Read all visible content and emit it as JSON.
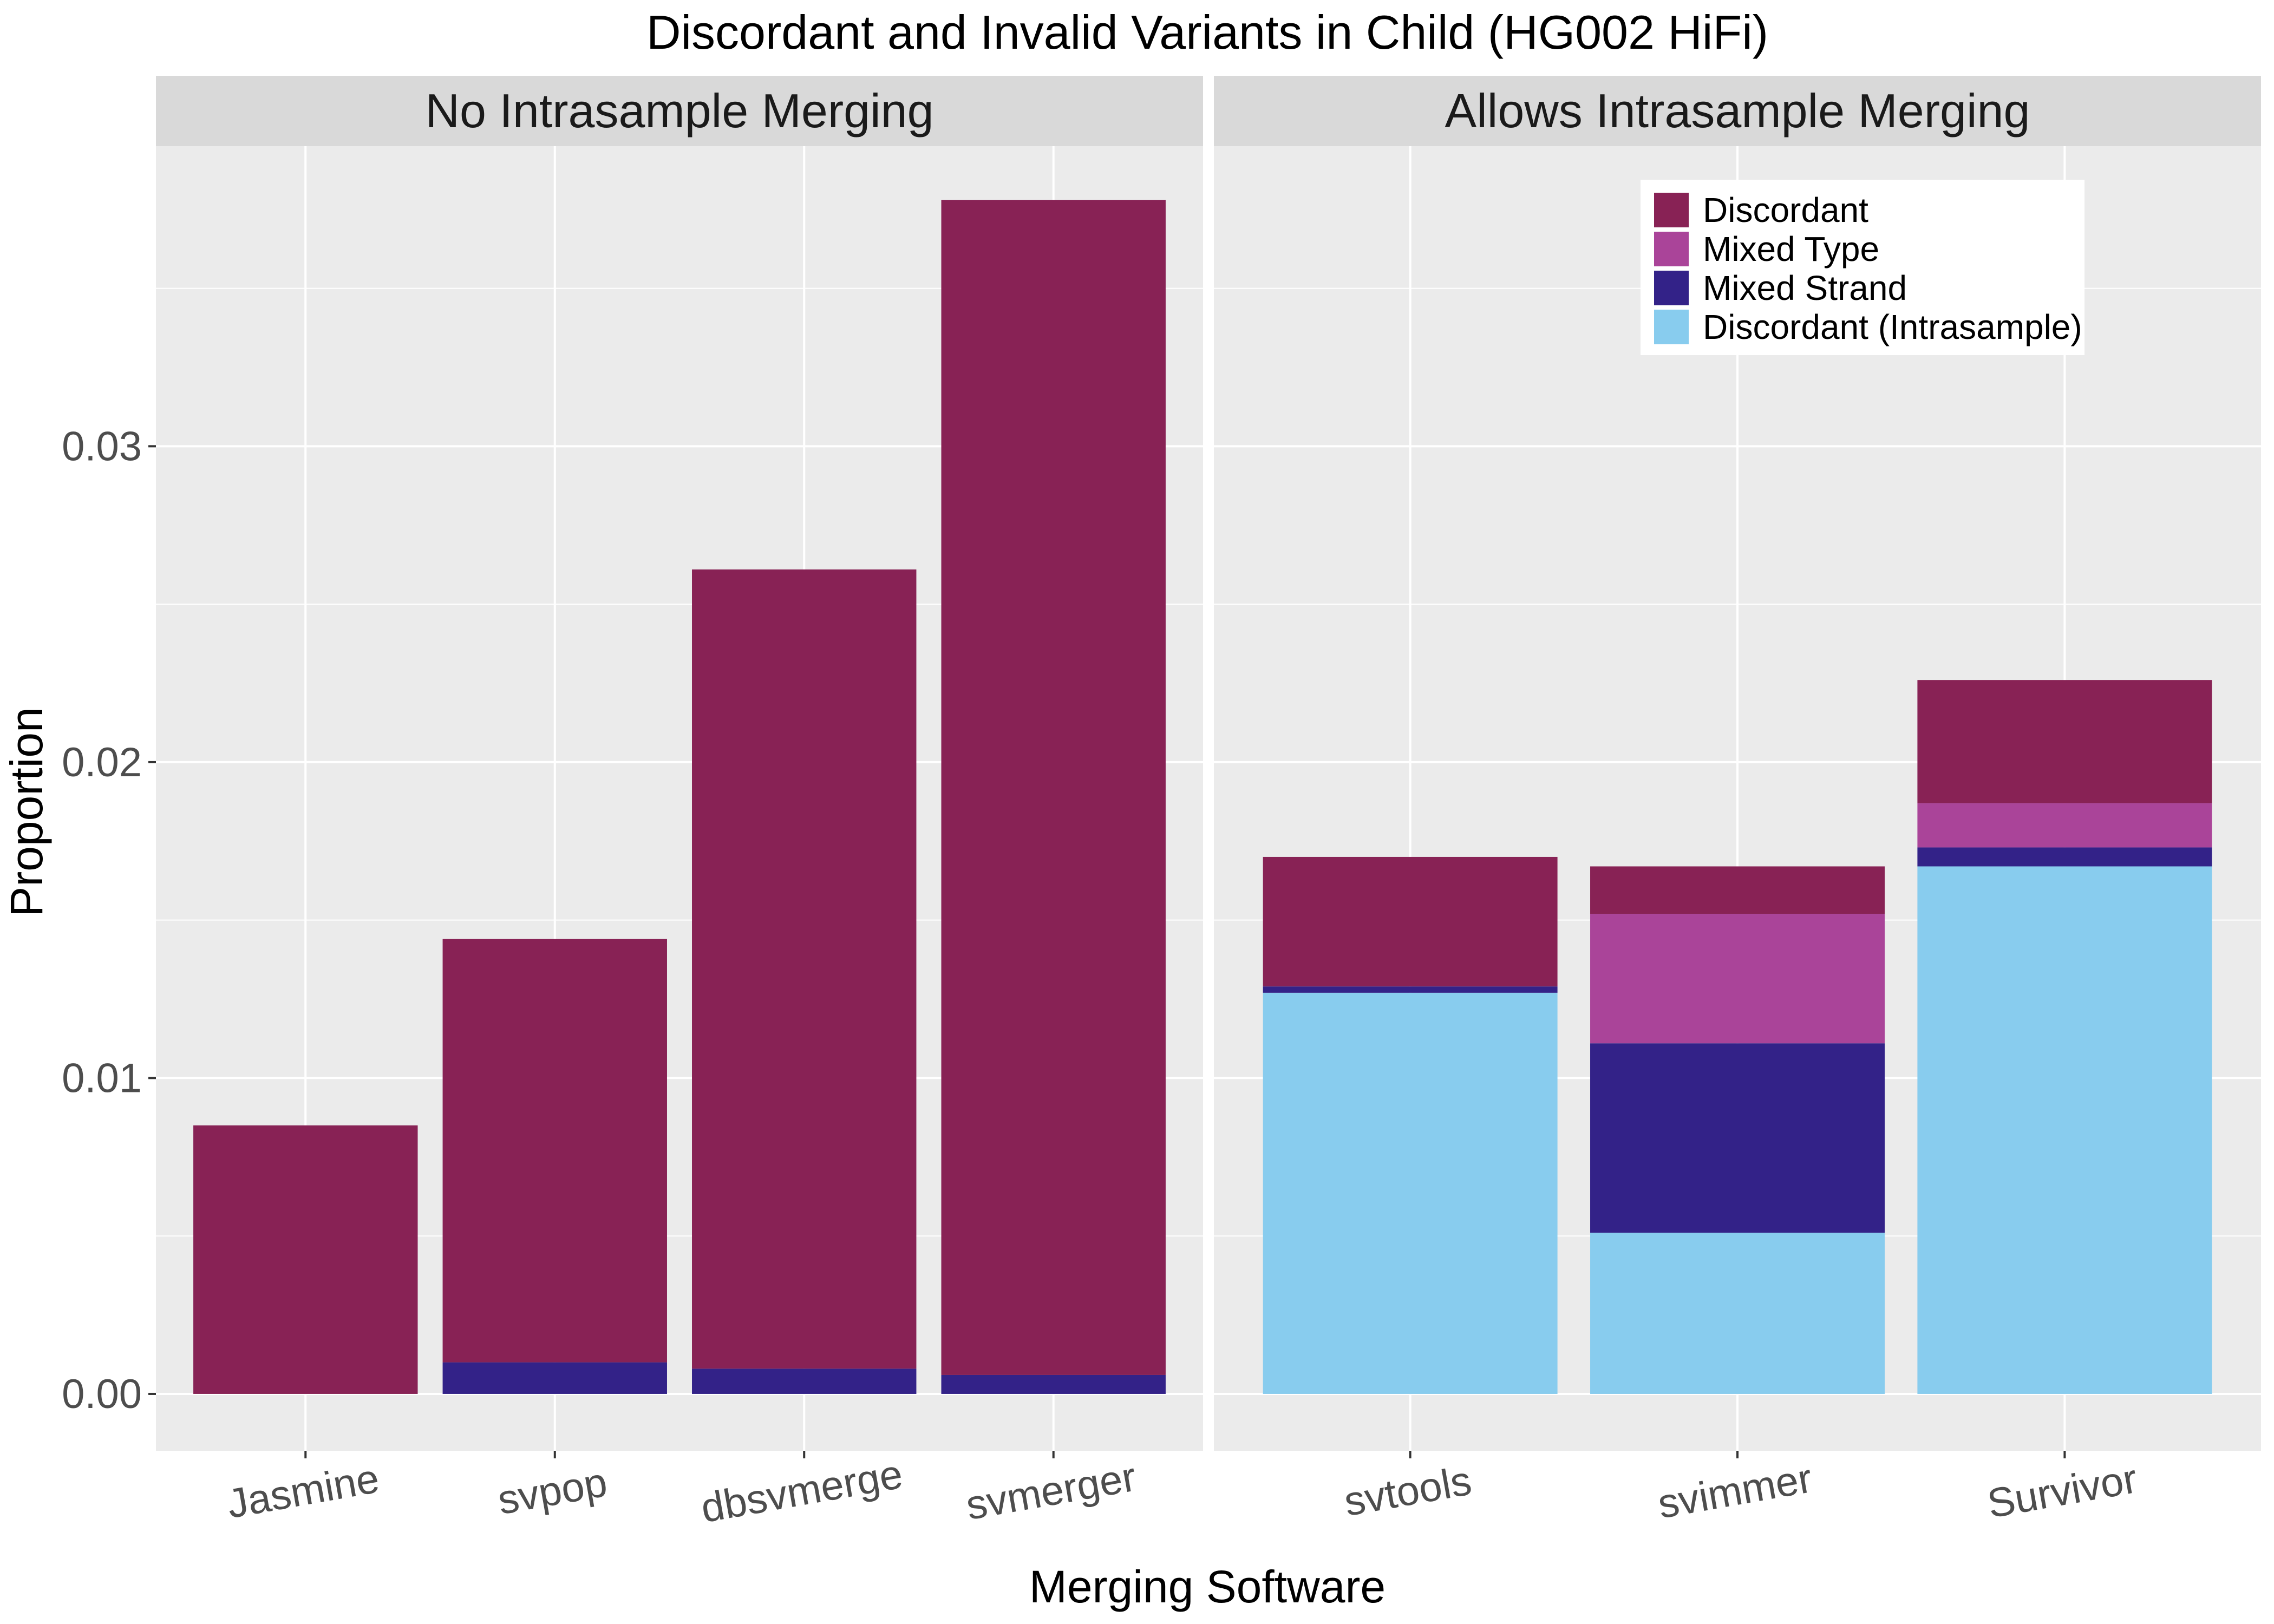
{
  "chart_data": {
    "type": "bar",
    "stacked": true,
    "title": "Discordant and Invalid Variants in Child (HG002 HiFi)",
    "xlabel": "Merging Software",
    "ylabel": "Proportion",
    "ylim": [
      -0.0018,
      0.0395
    ],
    "y_ticks": [
      0.0,
      0.01,
      0.02,
      0.03
    ],
    "y_tick_labels": [
      "0.00",
      "0.01",
      "0.02",
      "0.03"
    ],
    "grid": true,
    "legend_position": "top-right",
    "panels": [
      {
        "label": "No Intrasample Merging",
        "categories": [
          "Jasmine",
          "svpop",
          "dbsvmerge",
          "svmerger"
        ],
        "series": [
          {
            "name": "Discordant (Intrasample)",
            "color": "#88CCEE",
            "values": [
              0,
              0,
              0,
              0
            ]
          },
          {
            "name": "Mixed Strand",
            "color": "#332288",
            "values": [
              0,
              0.001,
              0.0008,
              0.0006
            ]
          },
          {
            "name": "Mixed Type",
            "color": "#AA4499",
            "values": [
              0,
              0,
              0,
              0
            ]
          },
          {
            "name": "Discordant",
            "color": "#882255",
            "values": [
              0.0085,
              0.0134,
              0.0253,
              0.0372
            ]
          }
        ]
      },
      {
        "label": "Allows Intrasample Merging",
        "categories": [
          "svtools",
          "svimmer",
          "Survivor"
        ],
        "series": [
          {
            "name": "Discordant (Intrasample)",
            "color": "#88CCEE",
            "values": [
              0.0127,
              0.0051,
              0.0167
            ]
          },
          {
            "name": "Mixed Strand",
            "color": "#332288",
            "values": [
              0.0002,
              0.006,
              0.0006
            ]
          },
          {
            "name": "Mixed Type",
            "color": "#AA4499",
            "values": [
              0,
              0.0041,
              0.0014
            ]
          },
          {
            "name": "Discordant",
            "color": "#882255",
            "values": [
              0.0041,
              0.0015,
              0.0039
            ]
          }
        ]
      }
    ],
    "legend": [
      {
        "name": "Discordant",
        "color": "#882255"
      },
      {
        "name": "Mixed Type",
        "color": "#AA4499"
      },
      {
        "name": "Mixed Strand",
        "color": "#332288"
      },
      {
        "name": "Discordant (Intrasample)",
        "color": "#88CCEE"
      }
    ]
  }
}
